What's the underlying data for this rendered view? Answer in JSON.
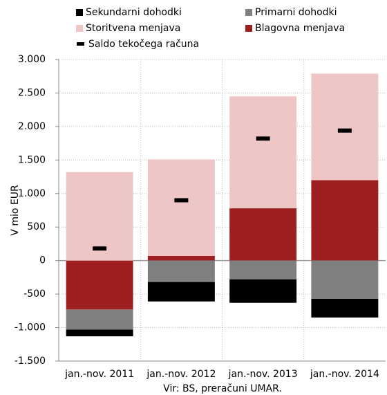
{
  "chart_data": {
    "type": "stacked_bar",
    "categories": [
      "jan.-nov. 2011",
      "jan.-nov. 2012",
      "jan.-nov. 2013",
      "jan.-nov. 2014"
    ],
    "series": [
      {
        "name": "Sekundarni dohodki",
        "color": "#000000",
        "values": [
          -100,
          -290,
          -350,
          -280
        ]
      },
      {
        "name": "Primarni dohodki",
        "color": "#808080",
        "values": [
          -300,
          -320,
          -280,
          -570
        ]
      },
      {
        "name": "Storitvena menjava",
        "color": "#efc6c6",
        "values": [
          1320,
          1440,
          1670,
          1590
        ]
      },
      {
        "name": "Blagovna menjava",
        "color": "#9e1f1f",
        "values": [
          -730,
          70,
          780,
          1200
        ]
      }
    ],
    "saldo": {
      "name": "Saldo tekočega računa",
      "color": "#000000",
      "values": [
        180,
        900,
        1820,
        1940
      ]
    },
    "y_label": "V mio EUR",
    "source": "Vir: BS, preračuni UMAR.",
    "ylim": [
      -1500,
      3000
    ],
    "yticks": [
      {
        "value": -1500,
        "label": "-1.500"
      },
      {
        "value": -1000,
        "label": "-1.000"
      },
      -500,
      0,
      500,
      {
        "value": 1000,
        "label": "1.000"
      },
      {
        "value": 1500,
        "label": "1.500"
      },
      {
        "value": 2000,
        "label": "2.000"
      },
      {
        "value": 2500,
        "label": "2.500"
      },
      {
        "value": 3000,
        "label": "3.000"
      }
    ],
    "grid": true
  }
}
